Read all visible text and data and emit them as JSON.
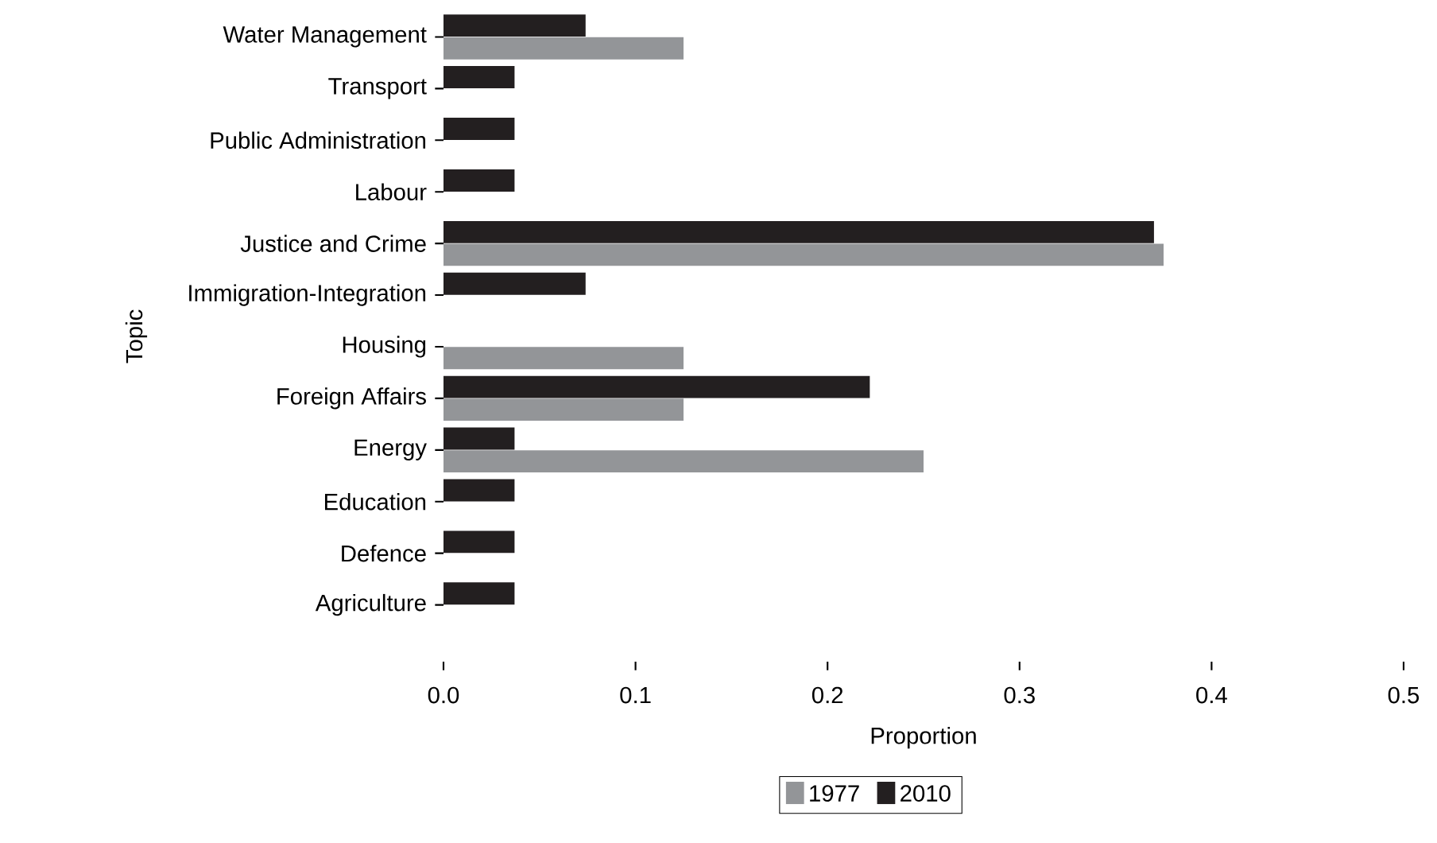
{
  "chart_data": {
    "type": "bar",
    "orientation": "horizontal",
    "xlabel": "Proportion",
    "ylabel": "Topic",
    "categories": [
      "Water Management",
      "Transport",
      "Public Administration",
      "Labour",
      "Justice and Crime",
      "Immigration-Integration",
      "Housing",
      "Foreign Affairs",
      "Energy",
      "Education",
      "Defence",
      "Agriculture"
    ],
    "series": [
      {
        "name": "1977",
        "color": "#939598",
        "values": [
          0.125,
          null,
          null,
          null,
          0.375,
          null,
          0.125,
          0.125,
          0.25,
          null,
          null,
          null
        ]
      },
      {
        "name": "2010",
        "color": "#231f20",
        "values": [
          0.074,
          0.037,
          0.037,
          0.037,
          0.37,
          0.074,
          null,
          0.222,
          0.037,
          0.037,
          0.037,
          0.037
        ]
      }
    ],
    "xlim": [
      0,
      0.5
    ],
    "xticks": [
      {
        "value": 0,
        "label": "0.0"
      },
      0.1,
      0.2,
      0.3,
      0.4,
      0.5
    ],
    "grid": false,
    "legend": "bottom"
  }
}
